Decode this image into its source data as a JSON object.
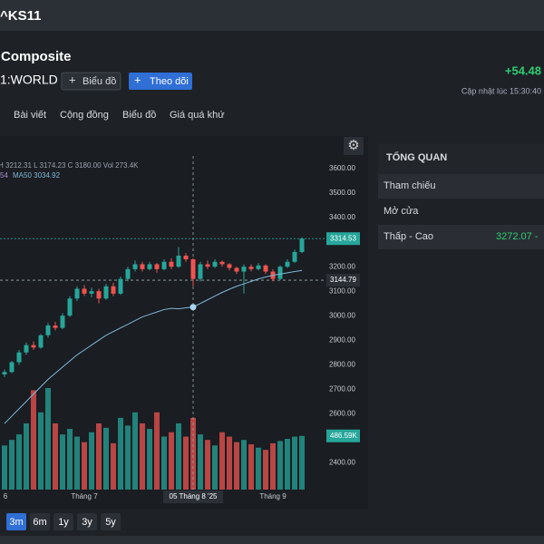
{
  "topbar": {
    "symbol": "^KS11"
  },
  "header": {
    "title": "Composite",
    "exchange": "1:WORLD",
    "change": "+54.48",
    "updated": "Cập nhật lúc  15:30:40",
    "buttons": [
      "Biểu đồ",
      "Theo dõi"
    ]
  },
  "tabs": [
    "Bài viết",
    "Cộng đồng",
    "Biểu đồ",
    "Giá quá khứ"
  ],
  "chart_data": {
    "type": "candlestick",
    "legend_ohlc": "H 3212.31  L 3174.23  C 3180.00  Vol 273.4K",
    "legend_ma_prefix": "54",
    "legend_ma": "MA50 3034.92",
    "categories": [
      "6",
      null,
      null,
      null,
      null,
      null,
      null,
      null,
      null,
      null,
      null,
      "Tháng 7",
      null,
      null,
      null,
      null,
      null,
      null,
      null,
      null,
      null,
      null,
      null,
      null,
      null,
      null,
      null,
      null,
      null,
      null,
      null,
      null,
      null,
      null,
      null,
      null,
      null,
      "Tháng 9",
      null,
      null,
      null,
      null
    ],
    "open": [
      2760,
      2770,
      2810,
      2850,
      2880,
      2870,
      2920,
      2960,
      2950,
      3000,
      3070,
      3110,
      3090,
      3100,
      3070,
      3120,
      3090,
      3150,
      3190,
      3210,
      3190,
      3210,
      3190,
      3220,
      3200,
      3245,
      3230,
      3150,
      3210,
      3200,
      3220,
      3210,
      3195,
      3180,
      3200,
      3190,
      3205,
      3180,
      3150,
      3200,
      3220,
      3260
    ],
    "high": [
      2780,
      2815,
      2860,
      2890,
      2895,
      2925,
      2970,
      2975,
      3010,
      3080,
      3120,
      3125,
      3115,
      3110,
      3130,
      3135,
      3160,
      3200,
      3225,
      3220,
      3220,
      3215,
      3230,
      3235,
      3280,
      3255,
      3235,
      3220,
      3225,
      3230,
      3225,
      3215,
      3200,
      3210,
      3210,
      3215,
      3210,
      3190,
      3205,
      3230,
      3270,
      3320
    ],
    "low": [
      2750,
      2765,
      2800,
      2840,
      2860,
      2865,
      2910,
      2940,
      2945,
      2995,
      3060,
      3080,
      3075,
      3050,
      3065,
      3080,
      3085,
      3140,
      3180,
      3180,
      3185,
      3175,
      3185,
      3190,
      3195,
      3220,
      3120,
      3140,
      3190,
      3195,
      3200,
      3185,
      3170,
      3090,
      3180,
      3185,
      3170,
      3140,
      3145,
      3195,
      3215,
      3255
    ],
    "close": [
      2770,
      2810,
      2850,
      2880,
      2870,
      2920,
      2960,
      2950,
      3000,
      3070,
      3110,
      3090,
      3100,
      3070,
      3120,
      3090,
      3150,
      3190,
      3210,
      3190,
      3210,
      3190,
      3220,
      3200,
      3245,
      3230,
      3150,
      3210,
      3200,
      3220,
      3210,
      3195,
      3180,
      3200,
      3190,
      3205,
      3180,
      3150,
      3200,
      3220,
      3260,
      3314.53
    ],
    "volume": [
      400,
      450,
      500,
      600,
      900,
      700,
      920,
      600,
      500,
      550,
      480,
      430,
      520,
      600,
      560,
      420,
      650,
      580,
      700,
      600,
      550,
      700,
      480,
      520,
      600,
      480,
      650,
      500,
      450,
      400,
      520,
      480,
      430,
      450,
      410,
      380,
      360,
      420,
      440,
      460,
      480,
      486.59
    ],
    "volume_value_labels": {
      "41": "486.59K"
    },
    "ma50": [
      2560,
      2590,
      2620,
      2650,
      2680,
      2710,
      2740,
      2765,
      2790,
      2815,
      2840,
      2860,
      2880,
      2900,
      2920,
      2935,
      2950,
      2965,
      2980,
      2995,
      3005,
      3015,
      3025,
      3030,
      3028,
      3032,
      3034.92,
      3050,
      3065,
      3080,
      3095,
      3108,
      3120,
      3130,
      3140,
      3150,
      3158,
      3165,
      3170,
      3175,
      3180,
      3185
    ],
    "crosshair": {
      "price": 3144.79,
      "date_label": "05 Tháng 8 '25"
    },
    "ylim": [
      2290,
      3641
    ],
    "yticks": [
      {
        "value": 3600,
        "label": "3600.00"
      },
      {
        "value": 3500,
        "label": "3500.00"
      },
      {
        "value": 3400,
        "label": "3400.00"
      },
      {
        "value": 3200,
        "label": "3200.00"
      },
      {
        "value": 3100,
        "label": "3100.00"
      },
      {
        "value": 3000,
        "label": "3000.00"
      },
      {
        "value": 2900,
        "label": "2900.00"
      },
      {
        "value": 2800,
        "label": "2800.00"
      },
      {
        "value": 2700,
        "label": "2700.00"
      },
      {
        "value": 2600,
        "label": "2600.00"
      },
      {
        "value": 2400,
        "label": "2400.00"
      }
    ],
    "up_color": "#26a69a",
    "down_color": "#ef5350",
    "ma_color": "#7fb8d8"
  },
  "overview": {
    "title": "TỔNG QUAN",
    "rows": [
      [
        "Tham chiếu"
      ],
      [
        "Mở cửa"
      ],
      [
        "Thấp - Cao",
        "3272.07 -"
      ]
    ]
  },
  "range_buttons": {
    "labels": [
      "3m",
      "6m",
      "1y",
      "3y",
      "5y"
    ],
    "selected": 0
  }
}
